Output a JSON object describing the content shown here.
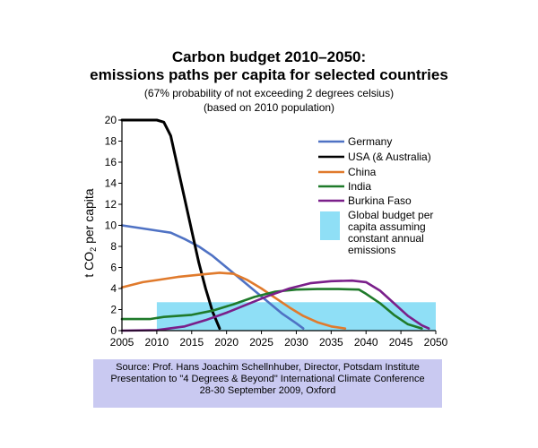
{
  "header": {
    "title_line1": "Carbon budget 2010–2050:",
    "title_line2": "emissions paths per capita for selected countries",
    "subtitle_line1": "(67% probability of not exceeding 2 degrees celsius)",
    "subtitle_line2": "(based on 2010 population)"
  },
  "axis": {
    "ylabel_prefix": "t CO",
    "ylabel_sub": "2",
    "ylabel_suffix": " per capita"
  },
  "source": {
    "line1": "Source: Prof. Hans Joachim Schellnhuber, Director, Potsdam Institute",
    "line2": "Presentation to \"4 Degrees & Beyond\" International Climate Conference",
    "line3": "28-30 September 2009, Oxford"
  },
  "chart_data": {
    "type": "line",
    "xlim": [
      2005,
      2050
    ],
    "ylim": [
      0,
      20
    ],
    "xticks": [
      2005,
      2010,
      2015,
      2020,
      2025,
      2030,
      2035,
      2040,
      2045,
      2050
    ],
    "yticks": [
      0,
      2,
      4,
      6,
      8,
      10,
      12,
      14,
      16,
      18,
      20
    ],
    "grid": false,
    "legend_position": "top-right",
    "series": [
      {
        "name": "Germany",
        "color": "#4f72c4",
        "points": [
          [
            2005,
            10.0
          ],
          [
            2008,
            9.7
          ],
          [
            2010,
            9.5
          ],
          [
            2012,
            9.3
          ],
          [
            2014,
            8.7
          ],
          [
            2016,
            8.0
          ],
          [
            2018,
            7.1
          ],
          [
            2020,
            6.0
          ],
          [
            2022,
            4.9
          ],
          [
            2024,
            3.8
          ],
          [
            2026,
            2.7
          ],
          [
            2028,
            1.6
          ],
          [
            2030,
            0.7
          ],
          [
            2031,
            0.2
          ]
        ]
      },
      {
        "name": "USA (& Australia)",
        "color": "#000000",
        "points": [
          [
            2005,
            20.0
          ],
          [
            2008,
            20.0
          ],
          [
            2010,
            20.0
          ],
          [
            2011,
            19.8
          ],
          [
            2012,
            18.5
          ],
          [
            2013,
            15.5
          ],
          [
            2014,
            12.5
          ],
          [
            2015,
            9.5
          ],
          [
            2016,
            6.5
          ],
          [
            2017,
            4.0
          ],
          [
            2018,
            1.8
          ],
          [
            2019,
            0.2
          ]
        ]
      },
      {
        "name": "China",
        "color": "#e07a2c",
        "points": [
          [
            2005,
            4.1
          ],
          [
            2008,
            4.6
          ],
          [
            2010,
            4.8
          ],
          [
            2013,
            5.1
          ],
          [
            2016,
            5.3
          ],
          [
            2019,
            5.5
          ],
          [
            2021,
            5.4
          ],
          [
            2023,
            4.8
          ],
          [
            2025,
            4.0
          ],
          [
            2027,
            3.1
          ],
          [
            2029,
            2.2
          ],
          [
            2031,
            1.4
          ],
          [
            2033,
            0.8
          ],
          [
            2035,
            0.4
          ],
          [
            2037,
            0.2
          ]
        ]
      },
      {
        "name": "India",
        "color": "#1f7a2a",
        "points": [
          [
            2005,
            1.1
          ],
          [
            2009,
            1.1
          ],
          [
            2011,
            1.3
          ],
          [
            2015,
            1.5
          ],
          [
            2018,
            1.9
          ],
          [
            2021,
            2.5
          ],
          [
            2024,
            3.2
          ],
          [
            2027,
            3.7
          ],
          [
            2030,
            3.9
          ],
          [
            2033,
            3.95
          ],
          [
            2036,
            3.95
          ],
          [
            2039,
            3.9
          ],
          [
            2040,
            3.5
          ],
          [
            2042,
            2.6
          ],
          [
            2044,
            1.5
          ],
          [
            2046,
            0.6
          ],
          [
            2048,
            0.2
          ]
        ]
      },
      {
        "name": "Burkina Faso",
        "color": "#7a1f8a",
        "points": [
          [
            2005,
            0.0
          ],
          [
            2010,
            0.05
          ],
          [
            2014,
            0.4
          ],
          [
            2017,
            1.0
          ],
          [
            2020,
            1.7
          ],
          [
            2023,
            2.5
          ],
          [
            2026,
            3.3
          ],
          [
            2029,
            4.0
          ],
          [
            2032,
            4.5
          ],
          [
            2035,
            4.7
          ],
          [
            2038,
            4.75
          ],
          [
            2040,
            4.6
          ],
          [
            2042,
            3.8
          ],
          [
            2044,
            2.6
          ],
          [
            2046,
            1.4
          ],
          [
            2048,
            0.5
          ],
          [
            2049,
            0.2
          ]
        ]
      }
    ],
    "budget_band": {
      "label_line1": "Global budget per",
      "label_line2": "capita assuming",
      "label_line3": "constant annual",
      "label_line4": "emissions",
      "color": "#8fdff6",
      "x_start": 2010,
      "x_end": 2050,
      "y_value": 2.7
    }
  }
}
